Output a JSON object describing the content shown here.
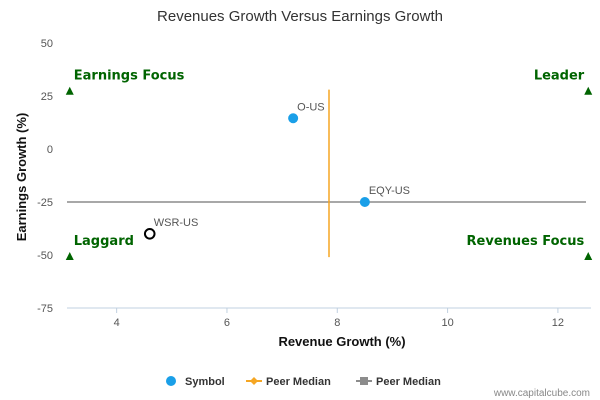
{
  "chart_data": {
    "type": "scatter",
    "title": "Revenues Growth Versus Earnings Growth",
    "xlabel": "Revenue Growth (%)",
    "ylabel": "Earnings Growth (%)",
    "xlim": [
      3.1,
      12.6
    ],
    "ylim": [
      -75,
      50
    ],
    "xticks": [
      4,
      6,
      8,
      10,
      12
    ],
    "yticks": [
      50,
      25,
      0,
      -25,
      -50,
      -75
    ],
    "points": [
      {
        "label": "O-US",
        "x": 7.2,
        "y": 14.5,
        "style": "filled",
        "color": "#1a9fe8"
      },
      {
        "label": "EQY-US",
        "x": 8.5,
        "y": -25,
        "style": "filled",
        "color": "#1a9fe8"
      },
      {
        "label": "WSR-US",
        "x": 4.6,
        "y": -40,
        "style": "hollow",
        "color": "#000000"
      }
    ],
    "peer_median": {
      "vertical": {
        "x": 7.85,
        "y_from": -51,
        "y_to": 28,
        "color": "#f5a623"
      },
      "horizontal": {
        "y": -25,
        "color": "#8c8c8c"
      }
    },
    "quadrants": [
      {
        "label": "Earnings Focus",
        "position": "top-left",
        "marker_y": 27.5
      },
      {
        "label": "Leader",
        "position": "top-right",
        "marker_y": 27.5
      },
      {
        "label": "Laggard",
        "position": "bottom-left",
        "marker_y": -50.5
      },
      {
        "label": "Revenues Focus",
        "position": "bottom-right",
        "marker_y": -50.5
      }
    ],
    "quadrant_color": "#006400",
    "legend": [
      {
        "name": "Symbol",
        "color": "#1a9fe8",
        "marker": "circle"
      },
      {
        "name": "Peer Median",
        "color": "#f5a623",
        "marker": "diamond-line"
      },
      {
        "name": "Peer Median",
        "color": "#8c8c8c",
        "marker": "square-line"
      }
    ],
    "legend_position": "bottom-center",
    "grid": false
  },
  "watermark": "www.capitalcube.com"
}
